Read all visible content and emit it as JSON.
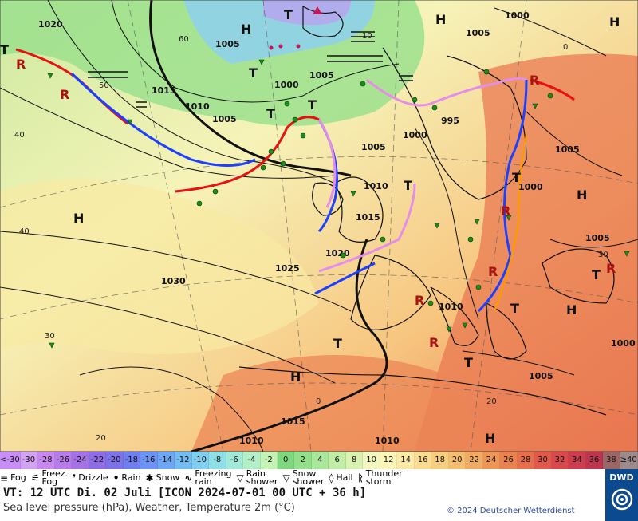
{
  "map": {
    "pressure_labels": [
      "1020",
      "1005",
      "1005",
      "1000",
      "1000",
      "1005",
      "1015",
      "1010",
      "1005",
      "1000",
      "995",
      "1005",
      "1010",
      "1005",
      "1000",
      "1015",
      "1020",
      "1025",
      "1030",
      "1010",
      "1005",
      "1000",
      "1005",
      "1015",
      "1010",
      "1010"
    ],
    "highs": [
      "H",
      "H",
      "H",
      "H",
      "H",
      "H",
      "H",
      "H"
    ],
    "lows": [
      "T",
      "T",
      "T",
      "T",
      "T",
      "T",
      "T",
      "T",
      "T",
      "T",
      "T"
    ],
    "lat_labels": [
      "60",
      "50",
      "40",
      "30",
      "20",
      "0",
      "40",
      "30",
      "20",
      "10",
      "0"
    ],
    "colors": {
      "cold_front": "#1f3fff",
      "warm_front": "#e81010",
      "occlusion": "#e38ee8",
      "trough": "#ff9900",
      "isobar": "#111111"
    }
  },
  "temp_scale": {
    "values": [
      "<-30",
      "-30",
      "-28",
      "-26",
      "-24",
      "-22",
      "-20",
      "-18",
      "-16",
      "-14",
      "-12",
      "-10",
      "-8",
      "-6",
      "-4",
      "-2",
      "0",
      "2",
      "4",
      "6",
      "8",
      "10",
      "12",
      "14",
      "16",
      "18",
      "20",
      "22",
      "24",
      "26",
      "28",
      "30",
      "32",
      "34",
      "36",
      "38",
      "≥40 °C"
    ],
    "colors": [
      "#c98ef5",
      "#d3a3f3",
      "#c788ef",
      "#b87ce8",
      "#a572e6",
      "#8e6ce4",
      "#7d72e8",
      "#6f7ff0",
      "#6b93f3",
      "#6ea8f4",
      "#74bdf3",
      "#7fd0f0",
      "#8ee0e6",
      "#a0ead7",
      "#b3f0c8",
      "#c5f3b5",
      "#7fd87f",
      "#93e08a",
      "#a9e79a",
      "#c2eda6",
      "#daf2b1",
      "#f1f7bf",
      "#fbf5b8",
      "#fbeaa6",
      "#f9dc92",
      "#f7cd80",
      "#f4bd70",
      "#f2ab62",
      "#ee9656",
      "#ea824f",
      "#e66e4b",
      "#e05a4c",
      "#d8494d",
      "#cc3e4f",
      "#bd3650",
      "#9c6666",
      "#9e8a8a"
    ]
  },
  "legend": {
    "items": [
      {
        "symbol": "≡",
        "label": "Fog",
        "icon": "fog-icon"
      },
      {
        "symbol": "⚟",
        "label": "Freez.\nFog",
        "icon": "freezing-fog-icon"
      },
      {
        "symbol": "❜",
        "label": "Drizzle",
        "icon": "drizzle-icon"
      },
      {
        "symbol": "•",
        "label": "Rain",
        "icon": "rain-icon"
      },
      {
        "symbol": "✱",
        "label": "Snow",
        "icon": "snow-icon"
      },
      {
        "symbol": "∿",
        "label": "Freezing\nrain",
        "icon": "freezing-rain-icon"
      },
      {
        "symbol": "▽",
        "label": "Rain\nshower",
        "icon": "rain-shower-icon"
      },
      {
        "symbol": "▽",
        "label": "Snow\nshower",
        "icon": "snow-shower-icon"
      },
      {
        "symbol": "◊",
        "label": "Hail",
        "icon": "hail-icon"
      },
      {
        "symbol": "ᚱ",
        "label": "Thunder\nstorm",
        "icon": "thunderstorm-icon"
      }
    ]
  },
  "info": {
    "valid_time": "VT: 12 UTC Di.  02 Juli [ICON 2024-07-01  00 UTC + 36 h]",
    "subtitle": "Sea level pressure (hPa), Weather, Temperature 2m (°C)",
    "copyright": "© 2024 Deutscher Wetterdienst",
    "logo": "DWD"
  }
}
